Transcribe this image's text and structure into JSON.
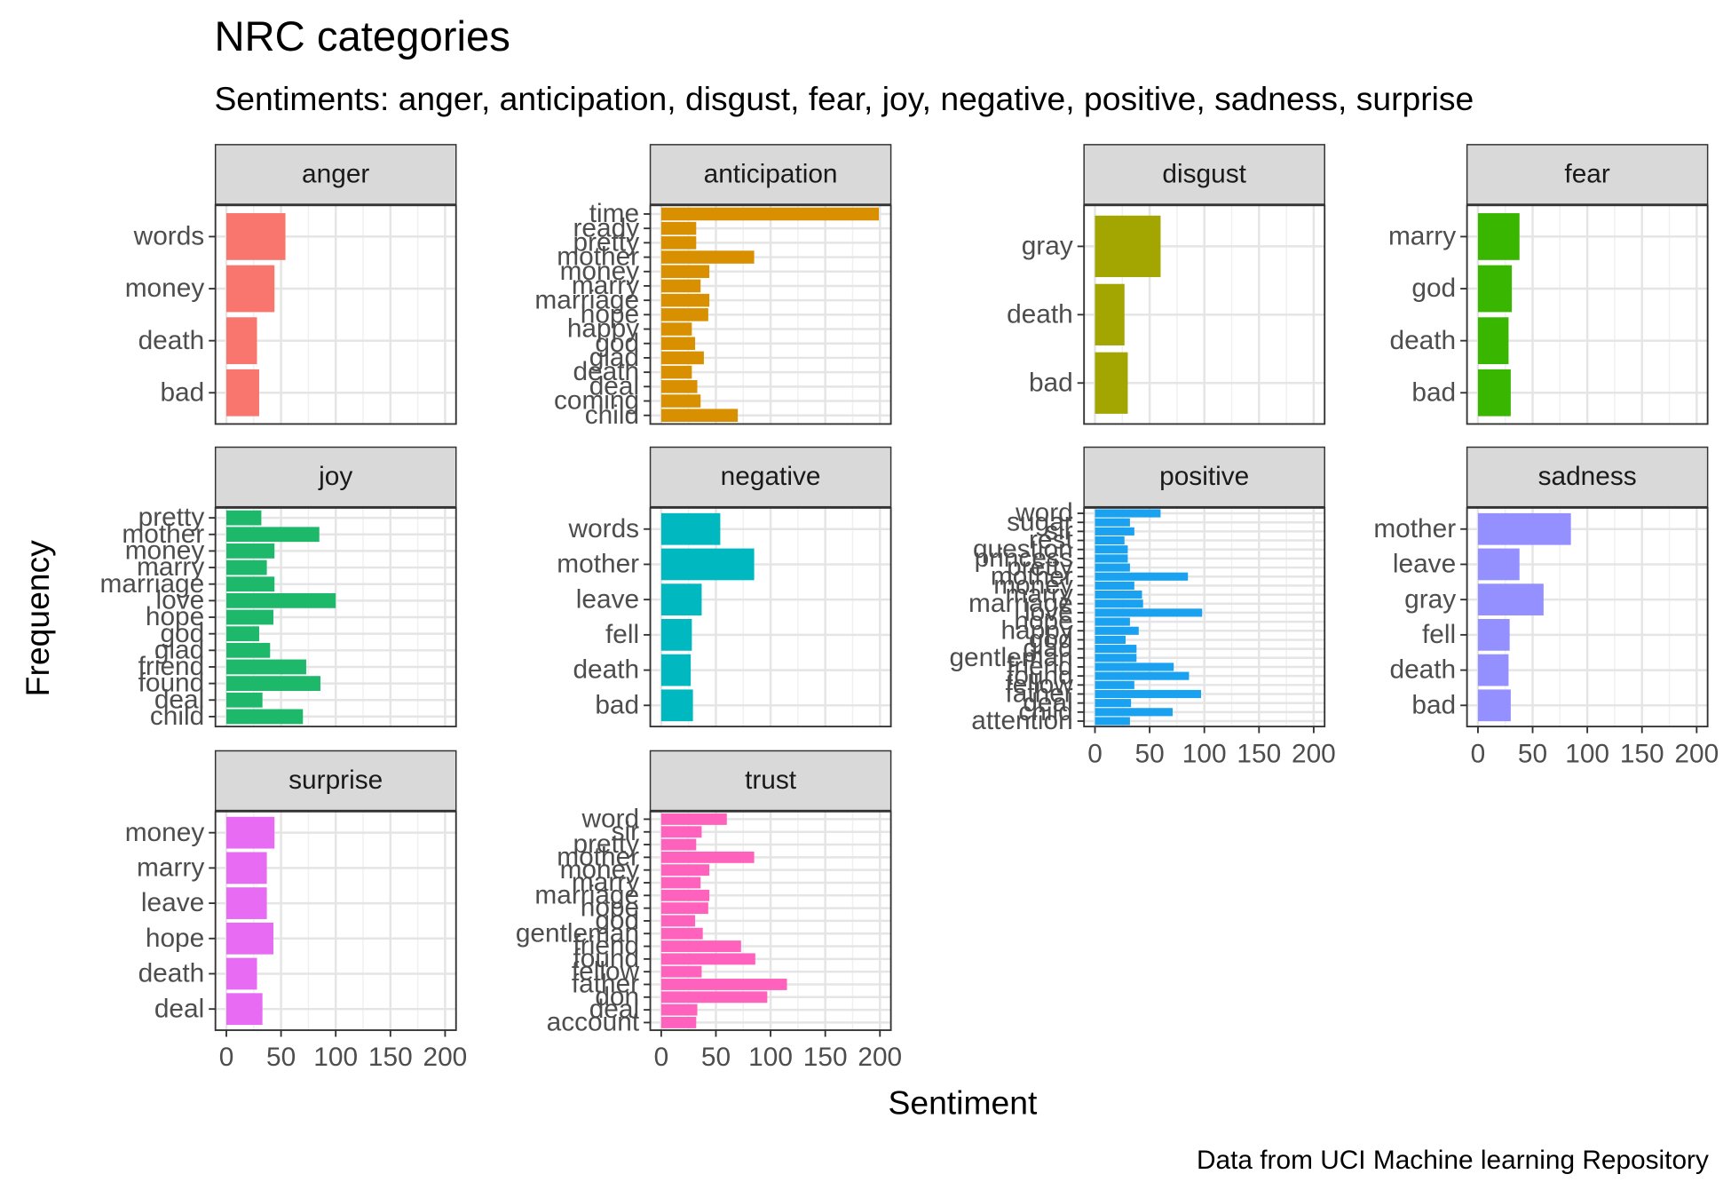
{
  "title": "NRC categories",
  "subtitle": "Sentiments: anger, anticipation, disgust, fear, joy, negative, positive, sadness, surprise",
  "x_label": "Sentiment",
  "y_label": "Frequency",
  "caption": "Data from UCI Machine learning Repository",
  "chart_data": [
    {
      "type": "bar",
      "title": "anger",
      "color": "#F8766D",
      "categories": [
        "words",
        "money",
        "death",
        "bad"
      ],
      "values": [
        54,
        44,
        28,
        30
      ],
      "xlim": [
        -10,
        210
      ],
      "xticks": [
        0,
        50,
        100,
        150,
        200
      ]
    },
    {
      "type": "bar",
      "title": "anticipation",
      "color": "#D89000",
      "categories": [
        "time",
        "ready",
        "pretty",
        "mother",
        "money",
        "marry",
        "marriage",
        "hope",
        "happy",
        "god",
        "glad",
        "death",
        "deal",
        "coming",
        "child"
      ],
      "values": [
        199,
        32,
        32,
        85,
        44,
        36,
        44,
        43,
        28,
        31,
        39,
        28,
        33,
        36,
        70
      ],
      "xlim": [
        -10,
        210
      ],
      "xticks": [
        0,
        50,
        100,
        150,
        200
      ]
    },
    {
      "type": "bar",
      "title": "disgust",
      "color": "#A3A500",
      "categories": [
        "gray",
        "death",
        "bad"
      ],
      "values": [
        60,
        27,
        30
      ],
      "xlim": [
        -10,
        210
      ],
      "xticks": [
        0,
        50,
        100,
        150,
        200
      ]
    },
    {
      "type": "bar",
      "title": "fear",
      "color": "#39B600",
      "categories": [
        "marry",
        "god",
        "death",
        "bad"
      ],
      "values": [
        38,
        31,
        28,
        30
      ],
      "xlim": [
        -10,
        210
      ],
      "xticks": [
        0,
        50,
        100,
        150,
        200
      ]
    },
    {
      "type": "bar",
      "title": "joy",
      "color": "#1DB86A",
      "categories": [
        "pretty",
        "mother",
        "money",
        "marry",
        "marriage",
        "love",
        "hope",
        "god",
        "glad",
        "friend",
        "found",
        "deal",
        "child"
      ],
      "values": [
        32,
        85,
        44,
        37,
        44,
        100,
        43,
        30,
        40,
        73,
        86,
        33,
        70
      ],
      "xlim": [
        -10,
        210
      ],
      "xticks": [
        0,
        50,
        100,
        150,
        200
      ]
    },
    {
      "type": "bar",
      "title": "negative",
      "color": "#00B8C0",
      "categories": [
        "words",
        "mother",
        "leave",
        "fell",
        "death",
        "bad"
      ],
      "values": [
        54,
        85,
        37,
        28,
        27,
        29
      ],
      "xlim": [
        -10,
        210
      ],
      "xticks": [
        0,
        50,
        100,
        150,
        200
      ]
    },
    {
      "type": "bar",
      "title": "positive",
      "color": "#1AA2F0",
      "categories": [
        "word",
        "sugar",
        "sir",
        "rest",
        "question",
        "princess",
        "pretty",
        "mother",
        "money",
        "marry",
        "marriage",
        "love",
        "hope",
        "happy",
        "god",
        "glad",
        "gentleman",
        "friend",
        "found",
        "fellow",
        "father",
        "deal",
        "child",
        "attention"
      ],
      "values": [
        60,
        32,
        36,
        27,
        30,
        30,
        32,
        85,
        36,
        43,
        44,
        98,
        32,
        40,
        28,
        38,
        38,
        72,
        86,
        36,
        97,
        33,
        71,
        32
      ],
      "xlim": [
        -10,
        210
      ],
      "xticks": [
        0,
        50,
        100,
        150,
        200
      ]
    },
    {
      "type": "bar",
      "title": "sadness",
      "color": "#9590FF",
      "categories": [
        "mother",
        "leave",
        "gray",
        "fell",
        "death",
        "bad"
      ],
      "values": [
        85,
        38,
        60,
        29,
        28,
        30
      ],
      "xlim": [
        -10,
        210
      ],
      "xticks": [
        0,
        50,
        100,
        150,
        200
      ]
    },
    {
      "type": "bar",
      "title": "surprise",
      "color": "#E76BF3",
      "categories": [
        "money",
        "marry",
        "leave",
        "hope",
        "death",
        "deal"
      ],
      "values": [
        44,
        37,
        37,
        43,
        28,
        33
      ],
      "xlim": [
        -10,
        210
      ],
      "xticks": [
        0,
        50,
        100,
        150,
        200
      ]
    },
    {
      "type": "bar",
      "title": "trust",
      "color": "#FF62BC",
      "categories": [
        "word",
        "sir",
        "pretty",
        "mother",
        "money",
        "marry",
        "marriage",
        "hope",
        "god",
        "gentleman",
        "friend",
        "found",
        "fellow",
        "father",
        "don",
        "deal",
        "account"
      ],
      "values": [
        60,
        37,
        32,
        85,
        44,
        36,
        44,
        43,
        31,
        38,
        73,
        86,
        37,
        115,
        97,
        33,
        32
      ],
      "xlim": [
        -10,
        210
      ],
      "xticks": [
        0,
        50,
        100,
        150,
        200
      ]
    }
  ]
}
